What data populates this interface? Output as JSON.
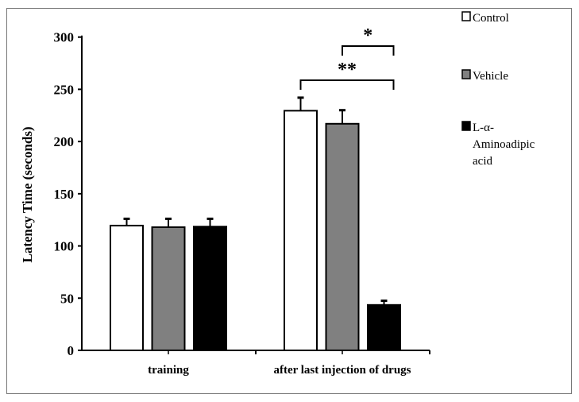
{
  "chart_data": {
    "type": "bar",
    "title": "",
    "xlabel": "",
    "ylabel": "Latency Time (seconds)",
    "ylim": [
      0,
      300
    ],
    "yticks": [
      0,
      50,
      100,
      150,
      200,
      250,
      300
    ],
    "categories": [
      "training",
      "after last injection of drugs"
    ],
    "series": [
      {
        "name": "Control",
        "color": "#ffffff",
        "values": [
          119.5,
          229.5
        ],
        "errors": [
          6.5,
          12.5
        ]
      },
      {
        "name": "Vehicle",
        "color": "#808080",
        "values": [
          118,
          217
        ],
        "errors": [
          8,
          13
        ]
      },
      {
        "name": "L-α-Aminoadipic acid",
        "color": "#000000",
        "values": [
          118.5,
          43.5
        ],
        "errors": [
          7.5,
          4
        ]
      }
    ],
    "legend_lines": [
      [
        "Control"
      ],
      [
        "Vehicle"
      ],
      [
        "L-α-",
        "Aminoadipic",
        "acid"
      ]
    ],
    "legend_position": "right",
    "annotations": [
      {
        "text": "**",
        "from_series": 0,
        "to_series": 2,
        "category": 1
      },
      {
        "text": "*",
        "from_series": 1,
        "to_series": 2,
        "category": 1
      }
    ]
  }
}
